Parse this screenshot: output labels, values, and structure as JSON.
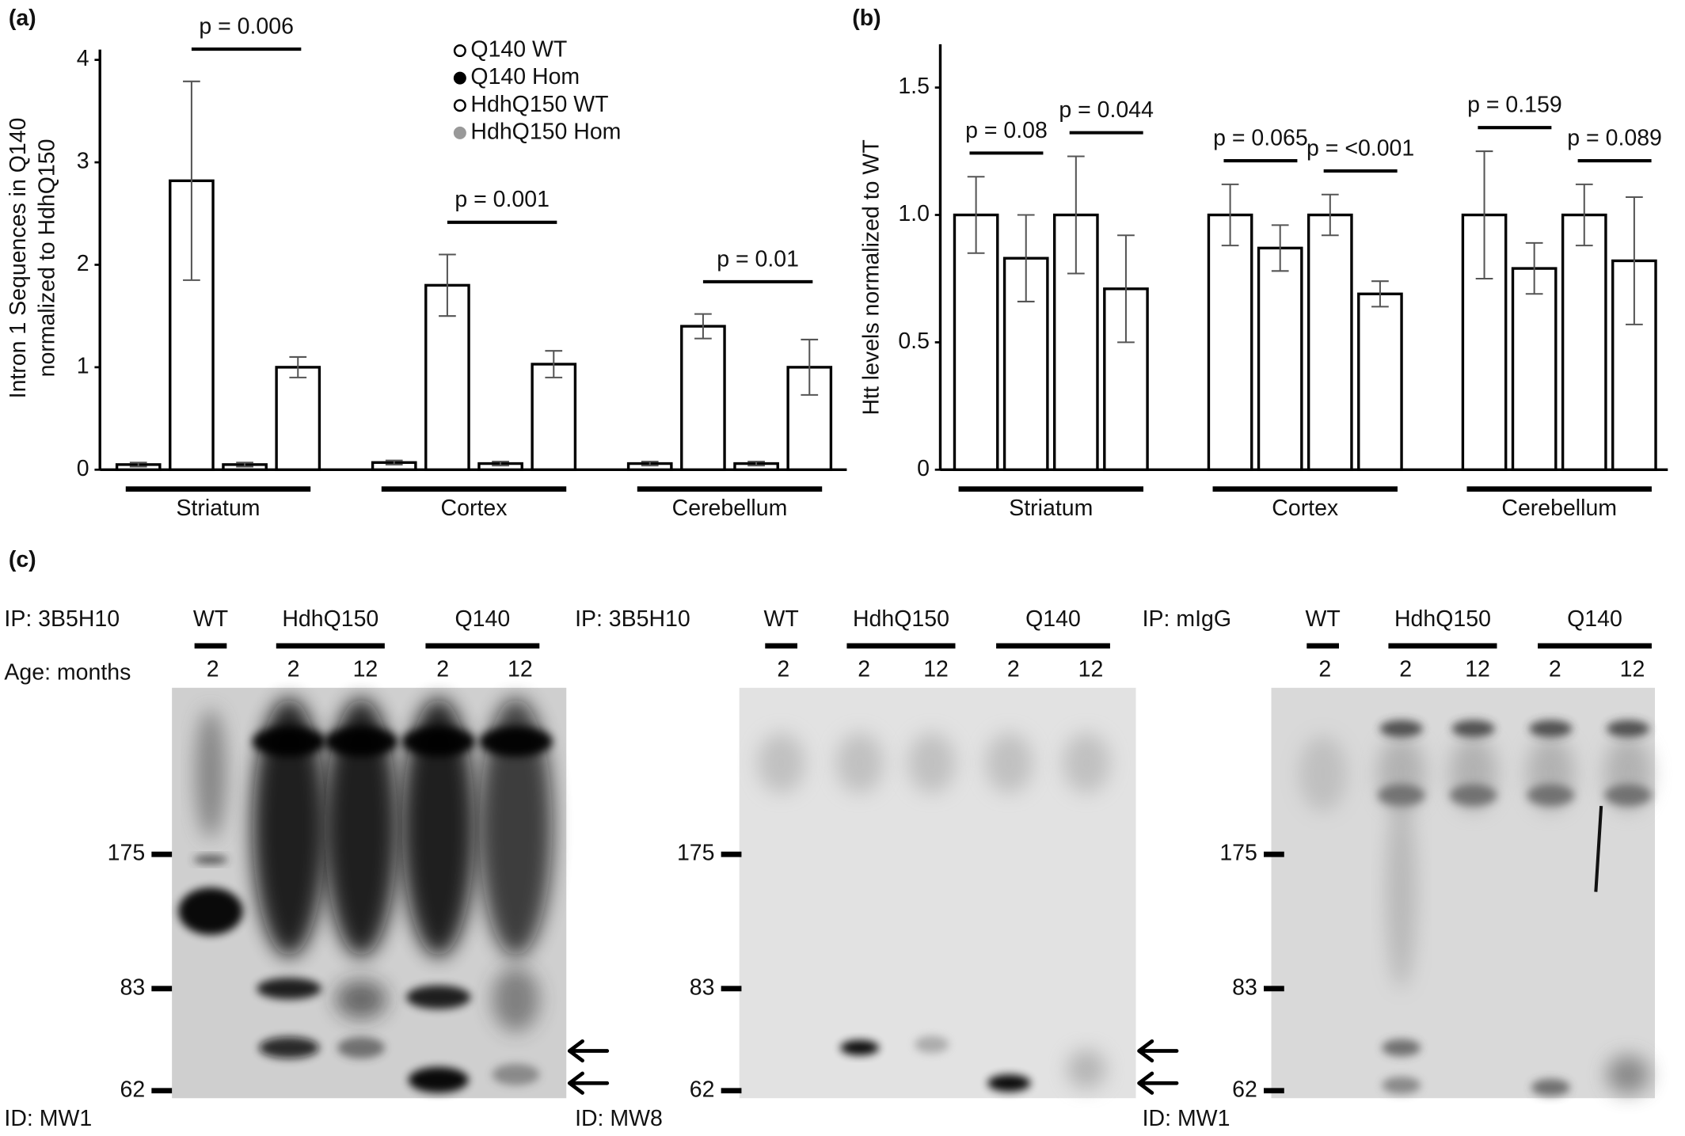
{
  "chart_data": [
    {
      "type": "bar",
      "panel": "(a)",
      "ylabel": [
        "Intron 1 Sequences in Q140",
        "normalized to HdhQ150"
      ],
      "categories": [
        "Striatum",
        "Cortex",
        "Cerebellum"
      ],
      "series": [
        {
          "name": "Q140 WT",
          "color": "#000000",
          "filled": false,
          "values": [
            0.05,
            0.07,
            0.06
          ],
          "errors": [
            0.02,
            0.02,
            0.02
          ]
        },
        {
          "name": "Q140 Hom",
          "color": "#000000",
          "filled": true,
          "values": [
            2.82,
            1.8,
            1.4
          ],
          "errors": [
            0.97,
            0.3,
            0.12
          ]
        },
        {
          "name": "HdhQ150 WT",
          "color": "#000000",
          "filled": false,
          "values": [
            0.05,
            0.06,
            0.06
          ],
          "errors": [
            0.02,
            0.02,
            0.02
          ]
        },
        {
          "name": "HdhQ150 Hom",
          "color": "#999999",
          "filled": true,
          "values": [
            1.0,
            1.03,
            1.0
          ],
          "errors": [
            0.1,
            0.13,
            0.27
          ]
        }
      ],
      "ylim": [
        0,
        4.1
      ],
      "yticks": [
        0,
        1,
        2,
        3,
        4
      ],
      "legend": "top-right",
      "annotations": [
        [
          "p = 0.006"
        ],
        [
          "p = 0.001"
        ],
        [
          "p = 0.01"
        ]
      ]
    },
    {
      "type": "bar",
      "panel": "(b)",
      "ylabel": [
        "Htt levels normalized to WT"
      ],
      "categories": [
        "Striatum",
        "Cortex",
        "Cerebellum"
      ],
      "series": [
        {
          "color": "#000000",
          "filled": false,
          "values": [
            1.0,
            1.0,
            1.0
          ],
          "errors": [
            0.15,
            0.12,
            0.25
          ]
        },
        {
          "color": "#000000",
          "filled": true,
          "values": [
            0.83,
            0.87,
            0.79
          ],
          "errors": [
            0.17,
            0.09,
            0.1
          ]
        },
        {
          "color": "#000000",
          "filled": false,
          "values": [
            1.0,
            1.0,
            1.0
          ],
          "errors": [
            0.23,
            0.08,
            0.12
          ]
        },
        {
          "color": "#999999",
          "filled": true,
          "values": [
            0.71,
            0.69,
            0.82
          ],
          "errors": [
            0.21,
            0.05,
            0.25
          ]
        }
      ],
      "ylim": [
        0,
        1.67
      ],
      "yticks": [
        0,
        0.5,
        {
          "value": 1,
          "label": "1.0"
        },
        1.5
      ],
      "annotations": [
        [
          "p = 0.08",
          "p = 0.044"
        ],
        [
          "p = 0.065",
          "p = <0.001"
        ],
        [
          "p = 0.159",
          "p = 0.089"
        ]
      ]
    }
  ],
  "blot_panel": {
    "label": "(c)",
    "age_label": "Age: months",
    "blots": [
      {
        "ip": "IP: 3B5H10",
        "groups": [
          "WT",
          "HdhQ150",
          "Q140"
        ],
        "ages": [
          2,
          2,
          12,
          2,
          12
        ],
        "markers": [
          175,
          83,
          62
        ],
        "detection": "ID: MW1"
      },
      {
        "ip": "IP: 3B5H10",
        "groups": [
          "WT",
          "HdhQ150",
          "Q140"
        ],
        "ages": [
          2,
          2,
          12,
          2,
          12
        ],
        "markers": [
          175,
          83,
          62
        ],
        "detection": "ID: MW8"
      },
      {
        "ip": "IP: mIgG",
        "groups": [
          "WT",
          "HdhQ150",
          "Q140"
        ],
        "ages": [
          2,
          2,
          12,
          2,
          12
        ],
        "markers": [
          175,
          83,
          62
        ],
        "detection": "ID: MW1"
      }
    ]
  }
}
